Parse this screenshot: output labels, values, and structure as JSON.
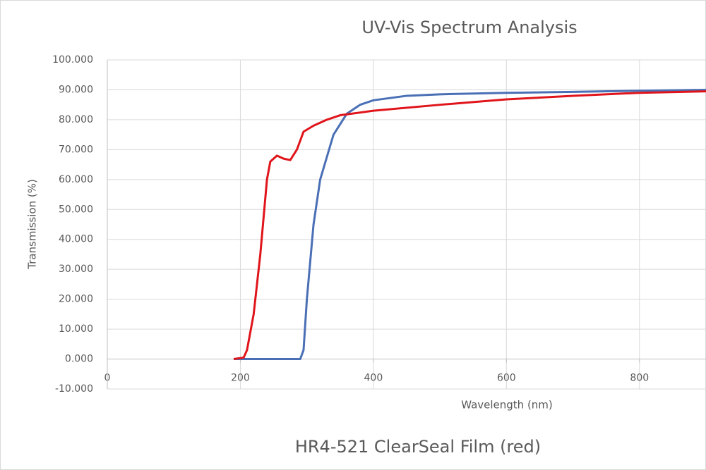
{
  "chart_data": {
    "type": "line",
    "title": "UV-Vis Spectrum Analysis",
    "x_label": "Wavelength (nm)",
    "y_label": "Transmission (%)",
    "caption": "HR4-521 ClearSeal Film (red)",
    "xlim": [
      0,
      900
    ],
    "xticks": [
      0,
      200,
      400,
      600,
      800
    ],
    "ylim": [
      -10,
      100
    ],
    "yticks": [
      {
        "value": -10,
        "label": "-10.000"
      },
      {
        "value": 0,
        "label": "0.000"
      },
      {
        "value": 10,
        "label": "10.000"
      },
      {
        "value": 20,
        "label": "20.000"
      },
      {
        "value": 30,
        "label": "30.000"
      },
      {
        "value": 40,
        "label": "40.000"
      },
      {
        "value": 50,
        "label": "50.000"
      },
      {
        "value": 60,
        "label": "60.000"
      },
      {
        "value": 70,
        "label": "70.000"
      },
      {
        "value": 80,
        "label": "80.000"
      },
      {
        "value": 90,
        "label": "90.000"
      },
      {
        "value": 100,
        "label": "100.000"
      }
    ],
    "grid": true,
    "series": [
      {
        "color": "#4a6fb5",
        "x": [
          190,
          290,
          295,
          300,
          310,
          320,
          340,
          360,
          380,
          400,
          450,
          500,
          600,
          700,
          800,
          900
        ],
        "values": [
          0,
          0,
          3,
          20,
          45,
          60,
          75,
          82,
          85,
          86.5,
          88,
          88.5,
          89,
          89.3,
          89.7,
          90
        ]
      },
      {
        "color": "#e0151b",
        "x": [
          190,
          205,
          210,
          220,
          230,
          240,
          245,
          255,
          265,
          275,
          285,
          295,
          310,
          330,
          350,
          400,
          500,
          600,
          700,
          800,
          900
        ],
        "values": [
          0,
          0.5,
          3,
          15,
          35,
          60,
          66,
          68,
          67,
          66.5,
          70,
          76,
          78,
          80,
          81.5,
          83,
          85,
          86.8,
          88,
          89,
          89.5
        ]
      }
    ]
  }
}
